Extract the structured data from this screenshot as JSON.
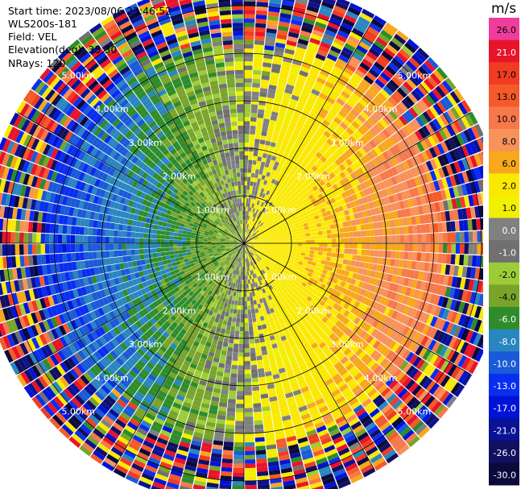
{
  "header": {
    "start_time": "Start time: 2023/08/06 23:46:52",
    "instrument": "WLS200s-181",
    "field": "Field: VEL",
    "elevation": "Elevation(deg): 35.30",
    "nrays": "NRays: 120"
  },
  "colorbar": {
    "unit": "m/s",
    "levels": [
      {
        "label": "26.0",
        "color": "#f03c9c"
      },
      {
        "label": "21.0",
        "color": "#e8142a"
      },
      {
        "label": "17.0",
        "color": "#f03c22"
      },
      {
        "label": "13.0",
        "color": "#f45a2a"
      },
      {
        "label": "10.0",
        "color": "#f7784a"
      },
      {
        "label": "8.0",
        "color": "#f7925a"
      },
      {
        "label": "6.0",
        "color": "#f7a81c"
      },
      {
        "label": "2.0",
        "color": "#fbe800"
      },
      {
        "label": "1.0",
        "color": "#f0f000"
      },
      {
        "label": "0.0",
        "color": "#808080"
      },
      {
        "label": "-1.0",
        "color": "#707070"
      },
      {
        "label": "-2.0",
        "color": "#9ccc38"
      },
      {
        "label": "-4.0",
        "color": "#78a42a"
      },
      {
        "label": "-6.0",
        "color": "#2e8c2a"
      },
      {
        "label": "-8.0",
        "color": "#2a86c0"
      },
      {
        "label": "-10.0",
        "color": "#1a5ad8"
      },
      {
        "label": "-13.0",
        "color": "#0a2ef0"
      },
      {
        "label": "-17.0",
        "color": "#0014d8"
      },
      {
        "label": "-21.0",
        "color": "#0a1296"
      },
      {
        "label": "-26.0",
        "color": "#111060"
      },
      {
        "label": "-30.0",
        "color": "#0a0a3c"
      }
    ]
  },
  "chart_data": {
    "type": "heatmap",
    "projection": "polar PPI",
    "field": "VEL",
    "units": "m/s",
    "nrays": 120,
    "range_rings_km": [
      1,
      2,
      3,
      4,
      5
    ],
    "ring_labels": [
      "1.00km",
      "2.00km",
      "3.00km",
      "4.00km",
      "5.00km"
    ],
    "spoke_angles_deg": [
      0,
      30,
      60,
      90,
      120,
      150,
      180,
      210,
      240,
      270,
      300,
      330
    ],
    "max_range_km": 5.5,
    "value_range": [
      -30,
      26
    ],
    "notes_on_pattern": {
      "approaching_sector_deg": [
        200,
        340
      ],
      "approaching_value": -4,
      "receding_sector_deg": [
        40,
        140
      ],
      "receding_value": 8,
      "noise_starts_km": 4.3
    }
  }
}
